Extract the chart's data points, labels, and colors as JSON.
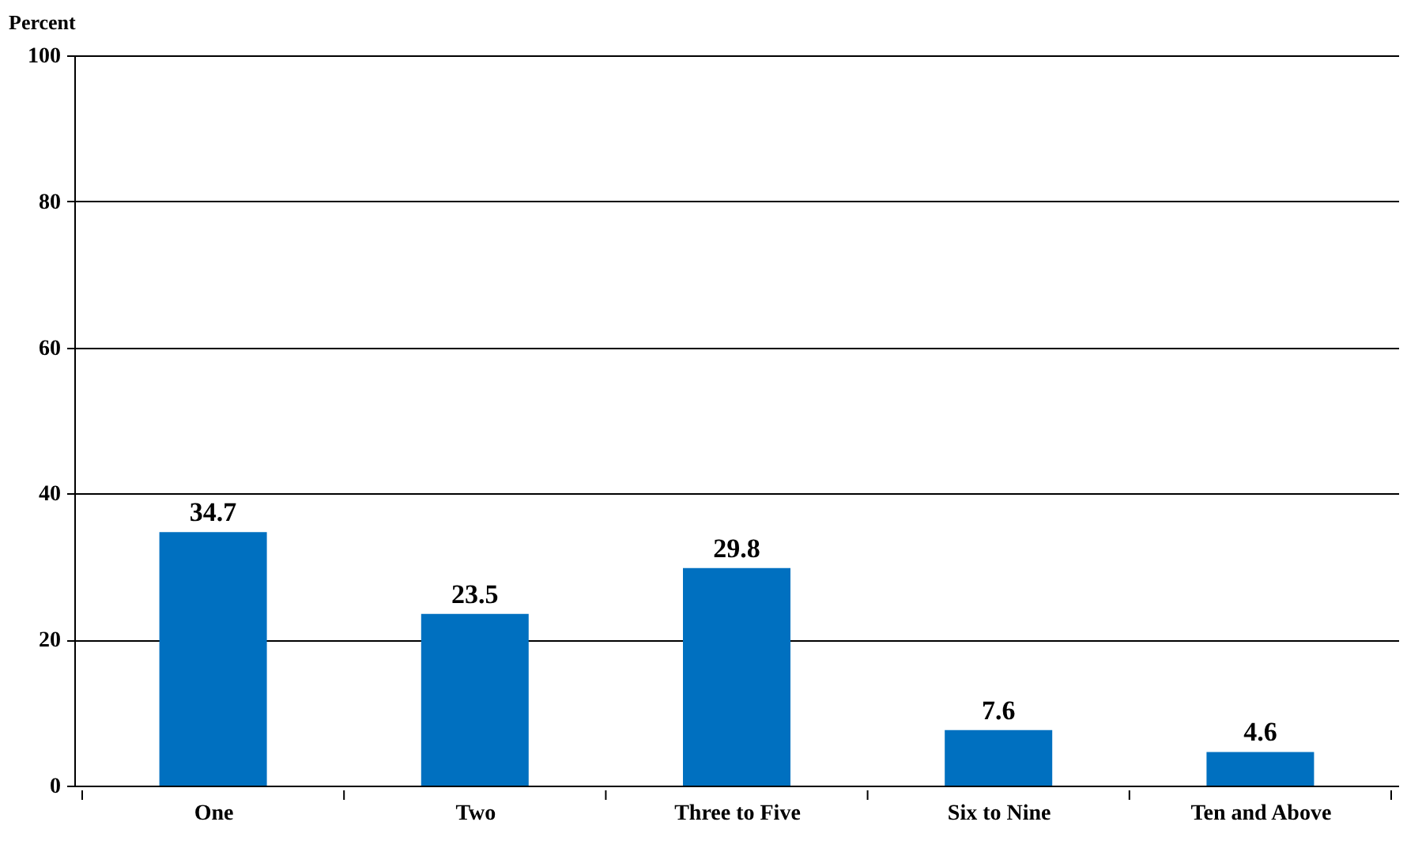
{
  "chart_data": {
    "type": "bar",
    "ylabel": "Percent",
    "categories": [
      "One",
      "Two",
      "Three to Five",
      "Six to Nine",
      "Ten and Above"
    ],
    "values": [
      34.7,
      23.5,
      29.8,
      7.6,
      4.6
    ],
    "color": "#0070c0",
    "ylim": [
      0,
      100
    ],
    "yticks": [
      0,
      20,
      40,
      60,
      80,
      100
    ],
    "grid": "y",
    "data_labels": true
  }
}
